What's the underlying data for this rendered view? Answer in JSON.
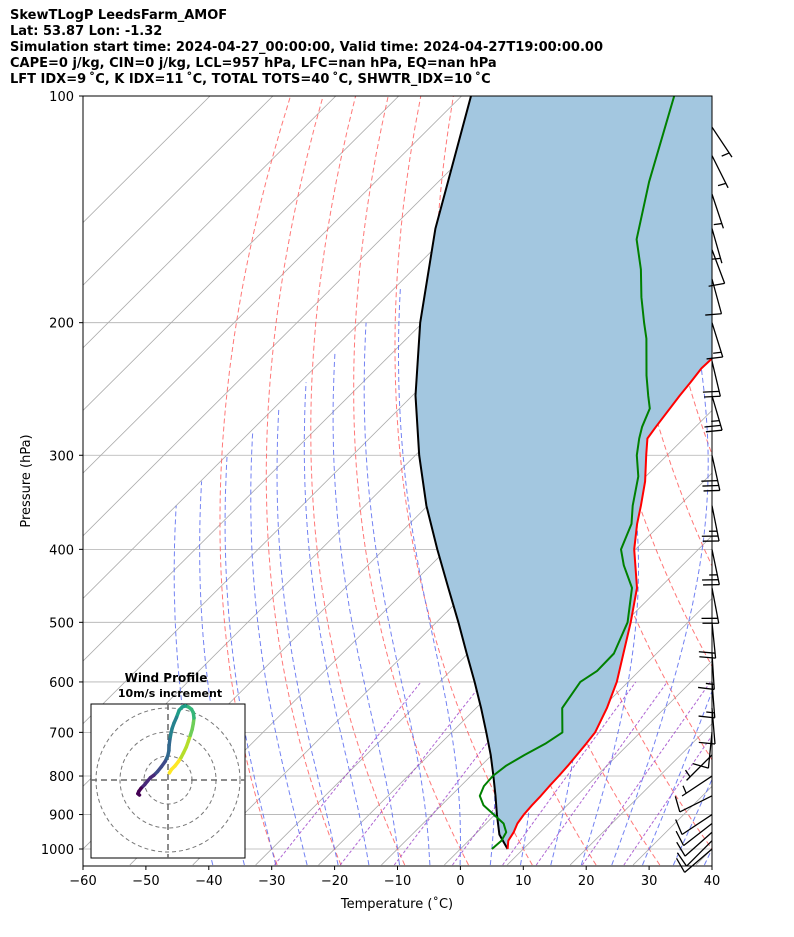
{
  "title_lines": [
    "SkewTLogP LeedsFarm_AMOF",
    "Lat: 53.87   Lon: -1.32",
    "Simulation start time: 2024-04-27_00:00:00, Valid time: 2024-04-27T19:00:00.00",
    "CAPE=0 j/kg, CIN=0 j/kg, LCL=957 hPa, LFC=nan hPa, EQ=nan hPa",
    "LFT IDX=9 ˚C, K IDX=11 ˚C, TOTAL TOTS=40 ˚C, SHWTR_IDX=10 ˚C"
  ],
  "colors": {
    "temperature": "#ff0000",
    "dewpoint": "#008000",
    "parcel": "#000000",
    "cape_fill": "#a3c7e0",
    "isotherm": "#aaaaaa",
    "dry_adiabat": "#ff6060",
    "moist_adiabat": "#5a6cf0",
    "mixing_ratio": "#9b40c8"
  },
  "chart_data": {
    "type": "skewt",
    "xlabel": "Temperature (˚C)",
    "ylabel": "Pressure (hPa)",
    "xlim": [
      -60,
      40
    ],
    "ylim": [
      1050,
      100
    ],
    "xticks": [
      -60,
      -50,
      -40,
      -30,
      -20,
      -10,
      0,
      10,
      20,
      30,
      40
    ],
    "xtick_labels": [
      "−60",
      "−50",
      "−40",
      "−30",
      "−20",
      "−10",
      "0",
      "10",
      "20",
      "30",
      "40"
    ],
    "yticks": [
      1000,
      900,
      800,
      700,
      600,
      500,
      400,
      300,
      200,
      100
    ],
    "ytick_labels": [
      "1000",
      "900",
      "800",
      "700",
      "600",
      "500",
      "400",
      "300",
      "200",
      "100"
    ],
    "temperature": {
      "p": [
        1000,
        975,
        950,
        925,
        900,
        875,
        850,
        825,
        800,
        775,
        750,
        725,
        700,
        650,
        600,
        550,
        500,
        450,
        400,
        370,
        350,
        325,
        300,
        285,
        275,
        250,
        240,
        230,
        210,
        200,
        185,
        170,
        155,
        140,
        130,
        120,
        110,
        100
      ],
      "t": [
        7.5,
        6.3,
        5.8,
        5.0,
        4.6,
        4.4,
        4.3,
        4.1,
        4.0,
        3.8,
        3.5,
        3.2,
        2.8,
        0.8,
        -1.8,
        -5.3,
        -9.1,
        -13.6,
        -20.2,
        -23.8,
        -26.1,
        -29.3,
        -33.3,
        -35.8,
        -36.3,
        -37.5,
        -37.9,
        -38.4,
        -38.1,
        -37.3,
        -35.4,
        -33.0,
        -30.3,
        -27.5,
        -25.5,
        -23.3,
        -21.3,
        -20.0
      ]
    },
    "dewpoint": {
      "p": [
        1000,
        975,
        950,
        925,
        900,
        875,
        850,
        825,
        800,
        775,
        750,
        725,
        700,
        650,
        600,
        580,
        550,
        500,
        450,
        420,
        400,
        370,
        350,
        320,
        300,
        285,
        275,
        260,
        250,
        235,
        210,
        200,
        185,
        170,
        155,
        130,
        100
      ],
      "t": [
        5.0,
        5.2,
        4.6,
        2.8,
        -0.2,
        -3.3,
        -5.4,
        -6.3,
        -6.5,
        -6.0,
        -4.8,
        -3.3,
        -2.4,
        -6.3,
        -7.6,
        -6.7,
        -6.8,
        -9.6,
        -14.4,
        -19.3,
        -22.3,
        -24.7,
        -27.4,
        -31.2,
        -34.8,
        -37.1,
        -38.5,
        -40.2,
        -42.5,
        -46.0,
        -51.9,
        -54.8,
        -59.3,
        -63.8,
        -69.3,
        -76.5,
        -86.2
      ]
    },
    "parcel": {
      "p": [
        1000,
        957,
        900,
        850,
        800,
        750,
        700,
        650,
        600,
        550,
        500,
        450,
        400,
        350,
        300,
        250,
        200,
        150,
        100
      ],
      "t": [
        7.5,
        3.9,
        0.3,
        -2.9,
        -6.4,
        -10.2,
        -14.5,
        -19.2,
        -24.4,
        -30.2,
        -36.5,
        -43.6,
        -51.5,
        -60.2,
        -69.4,
        -79.5,
        -90.4,
        -103.0,
        -118.5
      ]
    },
    "wind_barbs": {
      "p": [
        1000,
        975,
        950,
        925,
        900,
        850,
        800,
        750,
        700,
        650,
        600,
        550,
        500,
        450,
        400,
        350,
        300,
        250,
        225,
        200,
        175,
        160,
        150,
        135,
        120,
        110
      ],
      "u_kt": [
        7,
        8,
        9,
        9,
        9,
        8,
        6,
        5,
        1,
        -1,
        -1,
        -1,
        -2,
        -4,
        -5,
        -5,
        -6,
        -7,
        -5,
        -5,
        -3,
        -3,
        -2,
        -2,
        -2,
        -2
      ],
      "v_kt": [
        6,
        8,
        8,
        7,
        6,
        4,
        4,
        5,
        10,
        12,
        13,
        16,
        20,
        21,
        24,
        25,
        27,
        24,
        21,
        16,
        11,
        8,
        7,
        6,
        4,
        3
      ]
    },
    "inset": {
      "title": "Wind Profile",
      "subtitle": "10m/s increment",
      "rings_ms": [
        10,
        20,
        30
      ],
      "u_ms": [
        0.6,
        1.5,
        3.1,
        4.5,
        5.7,
        6.8,
        8.0,
        8.9,
        9.8,
        10.6,
        11.1,
        11.4,
        11.1,
        10.3,
        9.0,
        7.6,
        6.2,
        4.9,
        3.7,
        2.6,
        1.8,
        1.2,
        0.8,
        0.5,
        0.4,
        -0.1,
        -1.2,
        -2.9,
        -4.6,
        -6.2,
        -7.7,
        -9.0,
        -10.2,
        -11.8,
        -12.8,
        -13.2,
        -12.5
      ],
      "v_ms": [
        3.1,
        4.6,
        6.2,
        8.0,
        9.8,
        11.9,
        14.4,
        16.9,
        19.6,
        22.2,
        24.8,
        27.2,
        29.5,
        31.0,
        32.0,
        32.5,
        32.0,
        30.6,
        27.4,
        24.9,
        22.6,
        20.0,
        17.6,
        15.3,
        12.9,
        10.6,
        8.2,
        5.8,
        3.7,
        2.1,
        1.0,
        -0.5,
        -2.0,
        -3.6,
        -5.0,
        -6.0,
        -6.6
      ]
    }
  }
}
